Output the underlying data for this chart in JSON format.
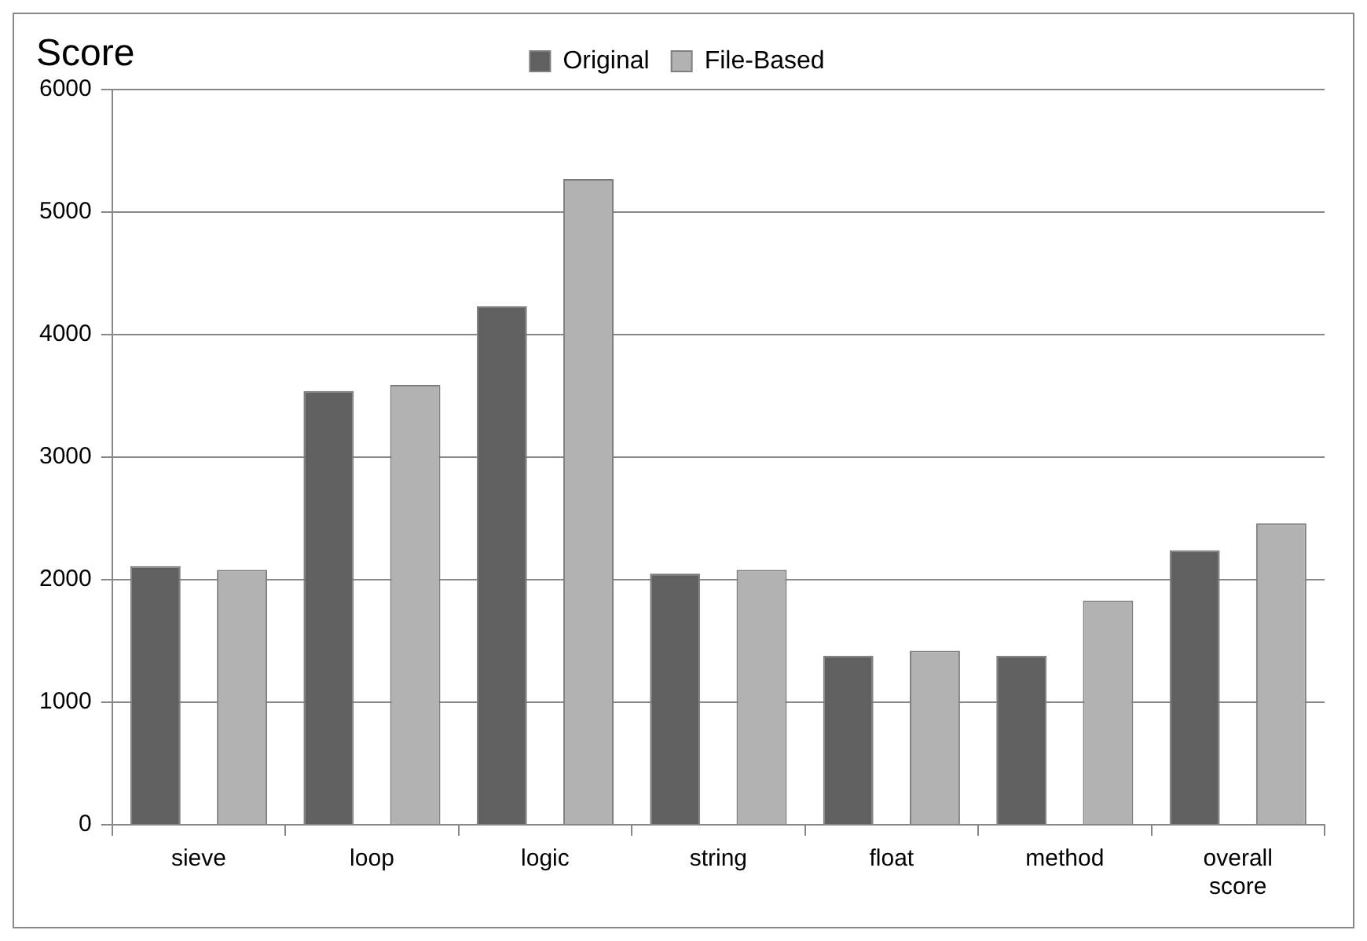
{
  "chart_data": {
    "type": "bar",
    "title": "Score",
    "categories": [
      "sieve",
      "loop",
      "logic",
      "string",
      "float",
      "method",
      "overall score"
    ],
    "series": [
      {
        "name": "Original",
        "color": "#606060",
        "values": [
          2110,
          3540,
          4230,
          2050,
          1380,
          1380,
          2240
        ]
      },
      {
        "name": "File-Based",
        "color": "#b2b2b2",
        "values": [
          2080,
          3590,
          5270,
          2080,
          1420,
          1830,
          2460
        ]
      }
    ],
    "ylim": [
      0,
      6000
    ],
    "yticks": [
      0,
      1000,
      2000,
      3000,
      4000,
      5000,
      6000
    ],
    "grid": "y",
    "legend": "top"
  }
}
